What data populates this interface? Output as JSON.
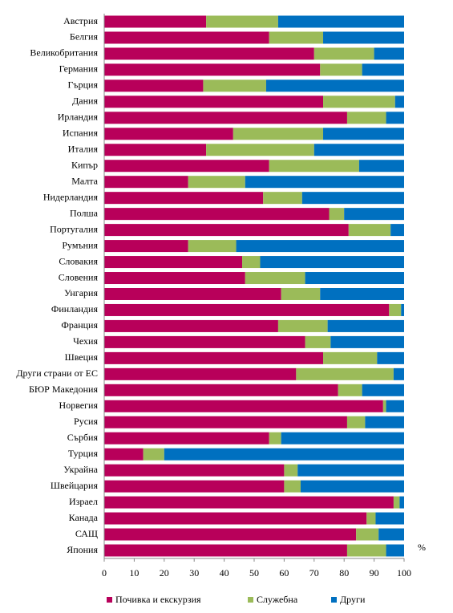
{
  "chart_data": {
    "type": "stacked_bar_horizontal",
    "categories": [
      "Австрия",
      "Белгия",
      "Великобритания",
      "Германия",
      "Гърция",
      "Дания",
      "Ирландия",
      "Испания",
      "Италия",
      "Кипър",
      "Малта",
      "Нидерландия",
      "Полша",
      "Португалия",
      "Румъния",
      "Словакия",
      "Словения",
      "Унгария",
      "Финландия",
      "Франция",
      "Чехия",
      "Швеция",
      "Други страни от ЕС",
      "БЮР Македония",
      "Норвегия",
      "Русия",
      "Сърбия",
      "Турция",
      "Украйна",
      "Швейцария",
      "Израел",
      "Канада",
      "САЩ",
      "Япония"
    ],
    "series": [
      {
        "name": "Почивка и екскурзия",
        "color": "#b8005a",
        "values": [
          34,
          55,
          70,
          72,
          33,
          73,
          81,
          43,
          34,
          55,
          28,
          53,
          75,
          81.5,
          28,
          46,
          47,
          59,
          95,
          58,
          67,
          73,
          64,
          78,
          93,
          81,
          55,
          13,
          60,
          60,
          96.5,
          87.5,
          84,
          81
        ]
      },
      {
        "name": "Служебна",
        "color": "#9bbb59",
        "values": [
          24,
          18,
          20,
          14,
          21,
          24,
          13,
          30,
          36,
          30,
          19,
          13,
          5,
          14,
          16,
          6,
          20,
          13,
          4,
          16.5,
          8.5,
          18,
          32.5,
          8,
          1,
          6,
          4,
          7,
          4.5,
          5.5,
          2,
          3,
          7.5,
          13
        ]
      },
      {
        "name": "Други",
        "color": "#0070c0",
        "values": [
          42,
          27,
          10,
          14,
          46,
          3,
          6,
          27,
          30,
          15,
          53,
          34,
          20,
          4.5,
          56,
          48,
          33,
          28,
          1,
          25.5,
          24.5,
          9,
          3.5,
          14,
          6,
          13,
          41,
          80,
          35.5,
          34.5,
          1.5,
          9.5,
          8.5,
          6
        ]
      }
    ],
    "xlim": [
      0,
      100
    ],
    "xticks": [
      0,
      10,
      20,
      30,
      40,
      50,
      60,
      70,
      80,
      90,
      100
    ],
    "x_unit": "%"
  }
}
